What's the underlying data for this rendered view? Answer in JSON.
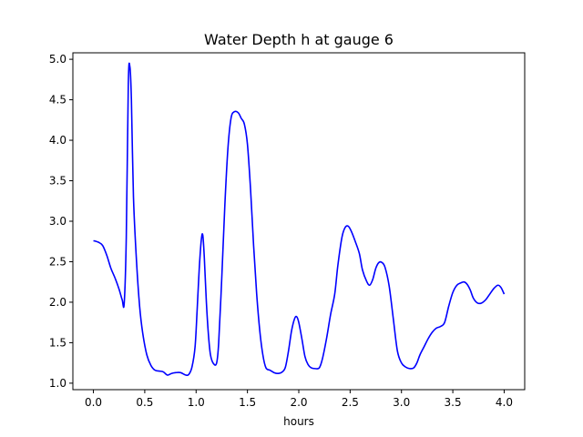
{
  "chart_data": {
    "type": "line",
    "title": "Water Depth h at gauge 6",
    "xlabel": "hours",
    "ylabel": "",
    "xlim": [
      -0.2,
      4.2
    ],
    "ylim": [
      0.92,
      5.08
    ],
    "x_ticks": [
      0.0,
      0.5,
      1.0,
      1.5,
      2.0,
      2.5,
      3.0,
      3.5,
      4.0
    ],
    "x_tick_labels": [
      "0.0",
      "0.5",
      "1.0",
      "1.5",
      "2.0",
      "2.5",
      "3.0",
      "3.5",
      "4.0"
    ],
    "y_ticks": [
      1.0,
      1.5,
      2.0,
      2.5,
      3.0,
      3.5,
      4.0,
      4.5,
      5.0
    ],
    "y_tick_labels": [
      "1.0",
      "1.5",
      "2.0",
      "2.5",
      "3.0",
      "3.5",
      "4.0",
      "4.5",
      "5.0"
    ],
    "grid": false,
    "series": [
      {
        "color": "#0000ff",
        "points": [
          [
            0.0,
            2.76
          ],
          [
            0.05,
            2.74
          ],
          [
            0.09,
            2.7
          ],
          [
            0.13,
            2.58
          ],
          [
            0.17,
            2.42
          ],
          [
            0.21,
            2.3
          ],
          [
            0.25,
            2.16
          ],
          [
            0.28,
            2.03
          ],
          [
            0.3,
            1.99
          ],
          [
            0.32,
            2.8
          ],
          [
            0.34,
            4.7
          ],
          [
            0.355,
            4.91
          ],
          [
            0.37,
            4.5
          ],
          [
            0.39,
            3.3
          ],
          [
            0.42,
            2.5
          ],
          [
            0.45,
            1.95
          ],
          [
            0.48,
            1.62
          ],
          [
            0.52,
            1.35
          ],
          [
            0.56,
            1.22
          ],
          [
            0.6,
            1.16
          ],
          [
            0.64,
            1.15
          ],
          [
            0.68,
            1.14
          ],
          [
            0.72,
            1.1
          ],
          [
            0.76,
            1.12
          ],
          [
            0.8,
            1.13
          ],
          [
            0.85,
            1.13
          ],
          [
            0.9,
            1.1
          ],
          [
            0.93,
            1.11
          ],
          [
            0.96,
            1.2
          ],
          [
            0.99,
            1.45
          ],
          [
            1.01,
            1.9
          ],
          [
            1.03,
            2.4
          ],
          [
            1.05,
            2.76
          ],
          [
            1.065,
            2.83
          ],
          [
            1.08,
            2.55
          ],
          [
            1.1,
            2.0
          ],
          [
            1.12,
            1.6
          ],
          [
            1.14,
            1.35
          ],
          [
            1.17,
            1.24
          ],
          [
            1.2,
            1.25
          ],
          [
            1.22,
            1.5
          ],
          [
            1.25,
            2.3
          ],
          [
            1.28,
            3.2
          ],
          [
            1.31,
            3.9
          ],
          [
            1.34,
            4.27
          ],
          [
            1.37,
            4.35
          ],
          [
            1.41,
            4.34
          ],
          [
            1.44,
            4.27
          ],
          [
            1.47,
            4.2
          ],
          [
            1.5,
            3.95
          ],
          [
            1.53,
            3.4
          ],
          [
            1.56,
            2.7
          ],
          [
            1.59,
            2.1
          ],
          [
            1.62,
            1.65
          ],
          [
            1.65,
            1.35
          ],
          [
            1.68,
            1.19
          ],
          [
            1.72,
            1.16
          ],
          [
            1.76,
            1.13
          ],
          [
            1.8,
            1.12
          ],
          [
            1.84,
            1.14
          ],
          [
            1.87,
            1.2
          ],
          [
            1.9,
            1.4
          ],
          [
            1.93,
            1.65
          ],
          [
            1.96,
            1.8
          ],
          [
            1.98,
            1.82
          ],
          [
            2.0,
            1.75
          ],
          [
            2.03,
            1.55
          ],
          [
            2.06,
            1.33
          ],
          [
            2.09,
            1.23
          ],
          [
            2.12,
            1.19
          ],
          [
            2.16,
            1.18
          ],
          [
            2.2,
            1.19
          ],
          [
            2.23,
            1.3
          ],
          [
            2.27,
            1.55
          ],
          [
            2.31,
            1.85
          ],
          [
            2.35,
            2.1
          ],
          [
            2.38,
            2.45
          ],
          [
            2.42,
            2.8
          ],
          [
            2.45,
            2.92
          ],
          [
            2.48,
            2.94
          ],
          [
            2.51,
            2.88
          ],
          [
            2.55,
            2.75
          ],
          [
            2.59,
            2.6
          ],
          [
            2.62,
            2.4
          ],
          [
            2.66,
            2.26
          ],
          [
            2.69,
            2.21
          ],
          [
            2.72,
            2.28
          ],
          [
            2.75,
            2.42
          ],
          [
            2.78,
            2.49
          ],
          [
            2.81,
            2.49
          ],
          [
            2.84,
            2.43
          ],
          [
            2.88,
            2.2
          ],
          [
            2.92,
            1.8
          ],
          [
            2.96,
            1.4
          ],
          [
            3.0,
            1.25
          ],
          [
            3.04,
            1.2
          ],
          [
            3.08,
            1.18
          ],
          [
            3.12,
            1.19
          ],
          [
            3.15,
            1.25
          ],
          [
            3.18,
            1.35
          ],
          [
            3.22,
            1.45
          ],
          [
            3.26,
            1.55
          ],
          [
            3.3,
            1.63
          ],
          [
            3.34,
            1.68
          ],
          [
            3.38,
            1.7
          ],
          [
            3.42,
            1.75
          ],
          [
            3.46,
            1.95
          ],
          [
            3.5,
            2.12
          ],
          [
            3.54,
            2.21
          ],
          [
            3.58,
            2.24
          ],
          [
            3.61,
            2.25
          ],
          [
            3.64,
            2.22
          ],
          [
            3.67,
            2.15
          ],
          [
            3.7,
            2.05
          ],
          [
            3.74,
            1.99
          ],
          [
            3.78,
            1.99
          ],
          [
            3.82,
            2.03
          ],
          [
            3.86,
            2.1
          ],
          [
            3.9,
            2.17
          ],
          [
            3.94,
            2.21
          ],
          [
            3.97,
            2.18
          ],
          [
            4.0,
            2.1
          ]
        ]
      }
    ]
  }
}
